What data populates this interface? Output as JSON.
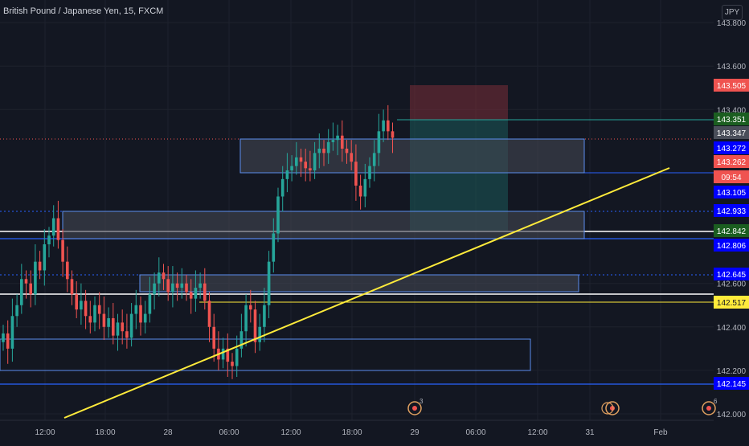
{
  "header": {
    "title": "British Pound / Japanese Yen, 15, FXCM",
    "currency_button": "JPY"
  },
  "colors": {
    "background": "#131722",
    "up": "#26a69a",
    "down": "#ef5350",
    "blue_line": "#2962ff",
    "trendline": "#ffeb3b",
    "zone_fill": "#363a45",
    "zone_border": "#5b8def",
    "axis_text": "#b2b5be"
  },
  "chart_data": {
    "type": "candlestick",
    "symbol": "British Pound / Japanese Yen",
    "interval": "15",
    "source": "FXCM",
    "ylim": [
      142.0,
      143.85
    ],
    "y_ticks": [
      "142.000",
      "142.200",
      "142.400",
      "142.600",
      "143.400",
      "143.600",
      "143.800"
    ],
    "x_ticks": [
      "12:00",
      "18:00",
      "28",
      "06:00",
      "12:00",
      "18:00",
      "29",
      "06:00",
      "12:00",
      "31",
      "Feb"
    ],
    "price_labels": [
      {
        "text": "143.505",
        "kind": "red"
      },
      {
        "text": "143.351",
        "kind": "green"
      },
      {
        "text": "143.347",
        "kind": "gray"
      },
      {
        "text": "143.272",
        "kind": "blue"
      },
      {
        "text": "143.262",
        "kind": "red"
      },
      {
        "text": "09:54",
        "kind": "red-small"
      },
      {
        "text": "143.105",
        "kind": "blue"
      },
      {
        "text": "142.933",
        "kind": "blue"
      },
      {
        "text": "142.842",
        "kind": "green"
      },
      {
        "text": "142.806",
        "kind": "blue"
      },
      {
        "text": "142.645",
        "kind": "blue"
      },
      {
        "text": "142.517",
        "kind": "yellow"
      },
      {
        "text": "142.145",
        "kind": "blue"
      }
    ],
    "event_markers": [
      "3",
      "",
      "6"
    ],
    "close_approx": [
      142.37,
      142.3,
      142.45,
      142.5,
      142.62,
      142.6,
      142.55,
      142.7,
      142.66,
      142.78,
      142.82,
      142.9,
      142.8,
      142.7,
      142.62,
      142.55,
      142.48,
      142.52,
      142.45,
      142.42,
      142.5,
      142.46,
      142.4,
      142.44,
      142.36,
      142.42,
      142.38,
      142.35,
      142.46,
      142.5,
      142.42,
      142.46,
      142.55,
      142.6,
      142.65,
      142.62,
      142.56,
      142.6,
      142.58,
      142.6,
      142.56,
      142.53,
      142.58,
      142.6,
      142.52,
      142.4,
      142.3,
      142.25,
      142.3,
      142.24,
      142.22,
      142.3,
      142.38,
      142.5,
      142.48,
      142.33,
      142.4,
      142.5,
      142.7,
      142.83,
      143.0,
      143.08,
      143.12,
      143.14,
      143.18,
      143.16,
      143.13,
      143.12,
      143.2,
      143.22,
      143.2,
      143.25,
      143.26,
      143.28,
      143.22,
      143.2,
      143.16,
      143.05,
      143.0,
      143.08,
      143.14,
      143.2,
      143.3,
      143.35,
      143.3,
      143.27
    ]
  }
}
